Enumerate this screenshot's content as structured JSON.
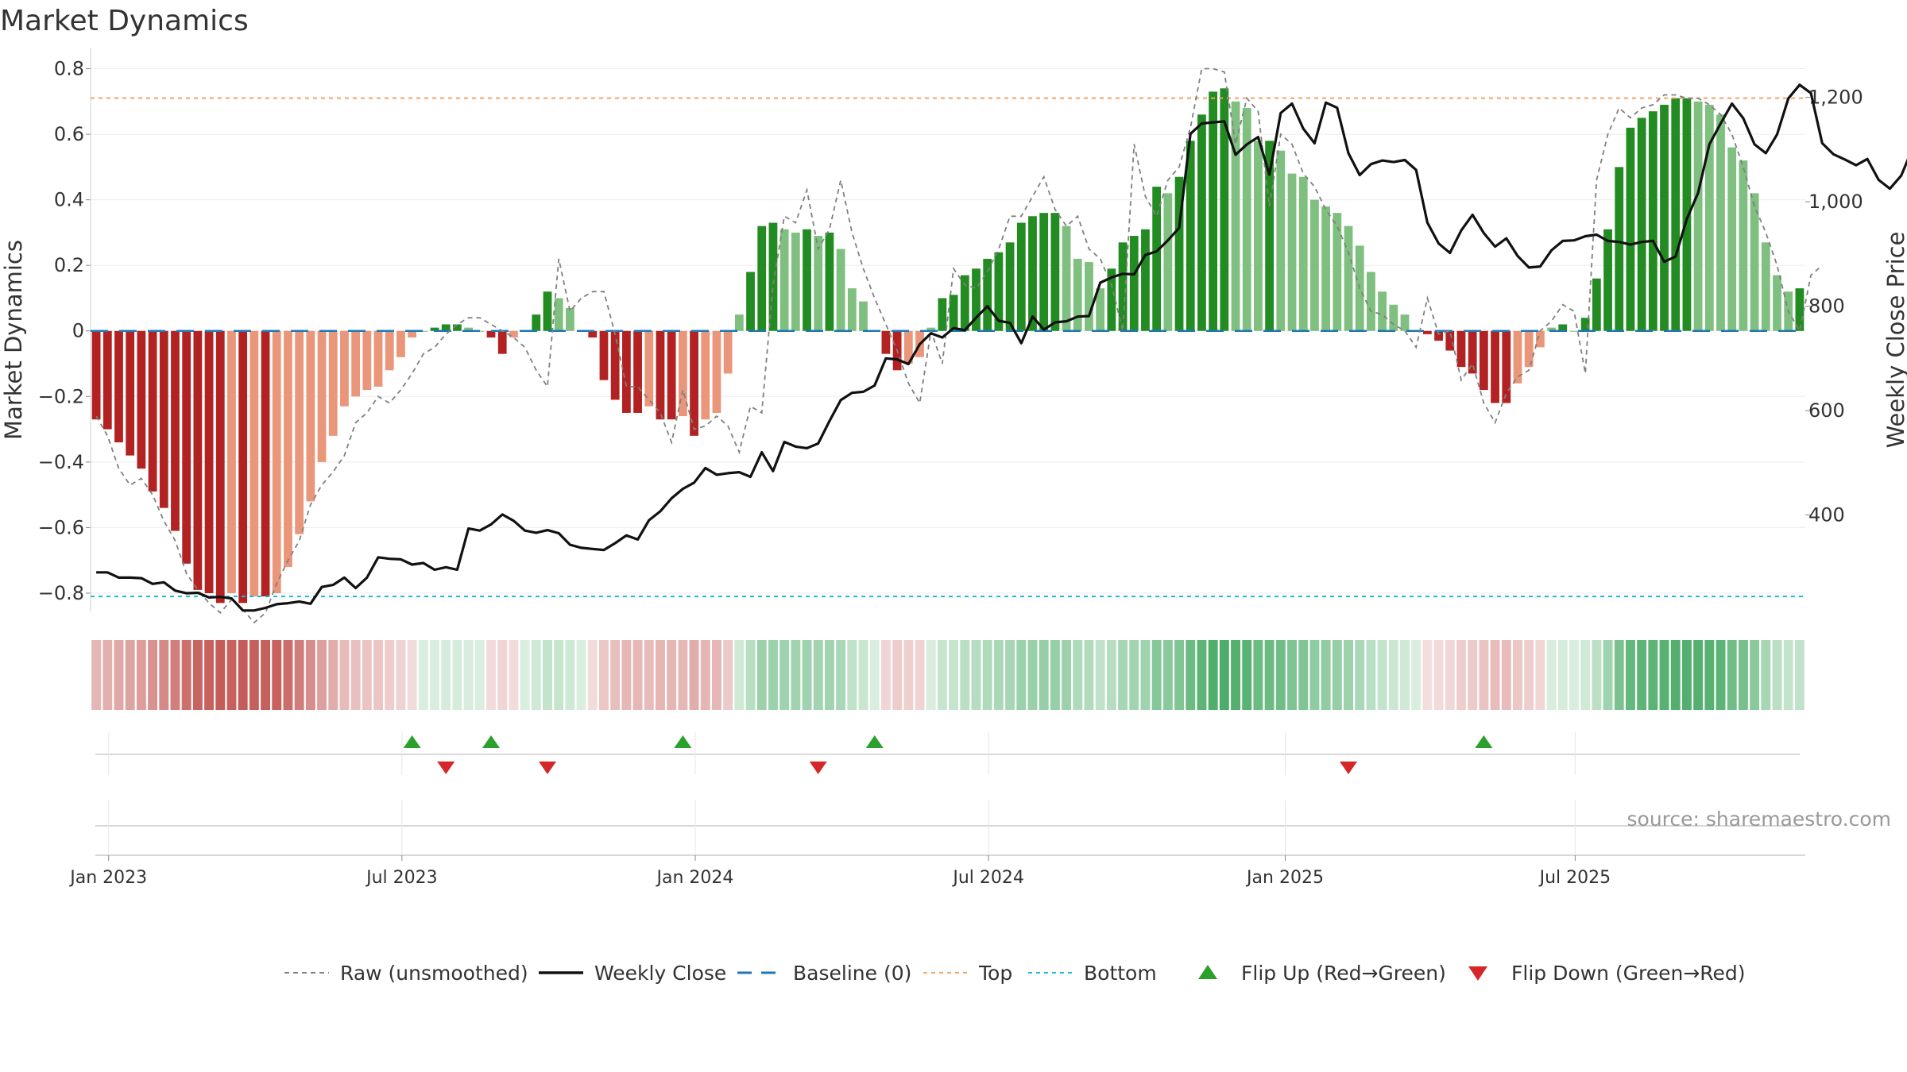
{
  "title": "Market Dynamics",
  "source": "source: sharemaestro.com",
  "colors": {
    "dark_red": "#b22222",
    "light_red": "#e9967a",
    "dark_green": "#228b22",
    "light_green": "#7fbf7f",
    "raw": "#808080",
    "close": "#111111",
    "baseline": "#1f77b4",
    "top": "#f4a460",
    "bottom": "#17becf",
    "flip_up": "#2ca02c",
    "flip_down": "#d62728",
    "band_red": "#c0504d",
    "band_green": "#2e9e4f"
  },
  "chart_data": {
    "type": "bar",
    "title": "Market Dynamics",
    "ylabel": "Market Dynamics",
    "y2label": "Weekly Close Price",
    "ylim": [
      -0.88,
      0.84
    ],
    "y2lim": [
      200,
      1280
    ],
    "yticks": [
      "0.8",
      "0.6",
      "0.4",
      "0.2",
      "0",
      "−0.2",
      "−0.4",
      "−0.6",
      "−0.8"
    ],
    "y2ticks": [
      "1,200",
      "1,000",
      "800",
      "600",
      "400"
    ],
    "xticks": [
      "Jan 2023",
      "Jul 2023",
      "Jan 2024",
      "Jul 2024",
      "Jan 2025",
      "Jul 2025"
    ],
    "top_line": 0.71,
    "bottom_line": -0.81,
    "baseline": 0,
    "series": [
      {
        "name": "Raw (unsmoothed)",
        "values": [
          -0.26,
          -0.32,
          -0.42,
          -0.47,
          -0.45,
          -0.5,
          -0.58,
          -0.64,
          -0.74,
          -0.79,
          -0.83,
          -0.86,
          -0.82,
          -0.85,
          -0.89,
          -0.86,
          -0.77,
          -0.7,
          -0.64,
          -0.53,
          -0.47,
          -0.43,
          -0.38,
          -0.28,
          -0.25,
          -0.2,
          -0.22,
          -0.18,
          -0.13,
          -0.07,
          -0.05,
          -0.01,
          0.02,
          0.04,
          0.04,
          0.02,
          0.0,
          -0.02,
          -0.05,
          -0.12,
          -0.17,
          0.22,
          0.06,
          0.1,
          0.12,
          0.12,
          -0.01,
          -0.17,
          -0.17,
          -0.21,
          -0.25,
          -0.34,
          -0.18,
          -0.3,
          -0.29,
          -0.26,
          -0.29,
          -0.37,
          -0.23,
          -0.25,
          0.14,
          0.35,
          0.33,
          0.43,
          0.25,
          0.31,
          0.46,
          0.3,
          0.19,
          0.1,
          0.02,
          -0.06,
          -0.16,
          -0.22,
          0.0,
          -0.1,
          0.19,
          0.14,
          0.13,
          0.18,
          0.25,
          0.35,
          0.35,
          0.41,
          0.47,
          0.37,
          0.32,
          0.35,
          0.25,
          0.22,
          0.14,
          0.0,
          0.57,
          0.41,
          0.35,
          0.46,
          0.5,
          0.62,
          0.8,
          0.8,
          0.79,
          0.57,
          0.71,
          0.67,
          0.38,
          0.6,
          0.57,
          0.48,
          0.44,
          0.37,
          0.32,
          0.24,
          0.13,
          0.06,
          0.05,
          0.02,
          0.0,
          -0.05,
          0.1,
          -0.01,
          0.0,
          -0.15,
          -0.1,
          -0.22,
          -0.28,
          -0.19,
          -0.14,
          -0.12,
          0.0,
          0.03,
          0.08,
          0.06,
          -0.13,
          0.46,
          0.6,
          0.68,
          0.65,
          0.68,
          0.69,
          0.72,
          0.72,
          0.71,
          0.71,
          0.69,
          0.66,
          0.6,
          0.5,
          0.38,
          0.3,
          0.2,
          0.06,
          0.0,
          0.17,
          0.2
        ]
      },
      {
        "name": "Weekly Close",
        "values": [
          290,
          290,
          280,
          280,
          279,
          268,
          271,
          255,
          250,
          251,
          242,
          243,
          240,
          217,
          217,
          222,
          229,
          231,
          234,
          230,
          262,
          266,
          280,
          260,
          280,
          319,
          316,
          315,
          305,
          308,
          295,
          300,
          295,
          374,
          370,
          382,
          401,
          389,
          370,
          366,
          371,
          365,
          343,
          337,
          335,
          333,
          346,
          361,
          353,
          390,
          407,
          432,
          450,
          462,
          490,
          477,
          480,
          482,
          473,
          520,
          484,
          540,
          531,
          528,
          537,
          580,
          620,
          634,
          636,
          648,
          700,
          698,
          689,
          727,
          748,
          740,
          758,
          754,
          778,
          800,
          772,
          768,
          729,
          780,
          755,
          769,
          771,
          780,
          781,
          845,
          855,
          862,
          861,
          898,
          905,
          926,
          950,
          1130,
          1150,
          1152,
          1154,
          1090,
          1110,
          1124,
          1052,
          1170,
          1188,
          1140,
          1112,
          1190,
          1180,
          1093,
          1051,
          1072,
          1079,
          1076,
          1080,
          1061,
          960,
          920,
          902,
          945,
          975,
          940,
          914,
          930,
          896,
          874,
          876,
          907,
          925,
          926,
          934,
          937,
          925,
          923,
          918,
          923,
          925,
          885,
          895,
          967,
          1017,
          1110,
          1150,
          1188,
          1160,
          1110,
          1093,
          1129,
          1198,
          1224,
          1208,
          1112,
          1091,
          1081,
          1070,
          1082,
          1042,
          1025,
          1050,
          1102,
          1117
        ]
      },
      {
        "name": "Smoothed",
        "values": [
          -0.27,
          -0.3,
          -0.34,
          -0.38,
          -0.42,
          -0.49,
          -0.54,
          -0.61,
          -0.71,
          -0.79,
          -0.8,
          -0.83,
          -0.8,
          -0.83,
          -0.81,
          -0.81,
          -0.8,
          -0.72,
          -0.62,
          -0.52,
          -0.4,
          -0.32,
          -0.23,
          -0.2,
          -0.18,
          -0.17,
          -0.12,
          -0.08,
          -0.02,
          0.0,
          0.01,
          0.02,
          0.02,
          0.01,
          0.0,
          -0.02,
          -0.07,
          -0.02,
          0.0,
          0.05,
          0.12,
          0.1,
          0.07,
          0.0,
          -0.02,
          -0.15,
          -0.21,
          -0.25,
          -0.25,
          -0.23,
          -0.27,
          -0.27,
          -0.26,
          -0.32,
          -0.27,
          -0.25,
          -0.13,
          0.05,
          0.18,
          0.32,
          0.33,
          0.31,
          0.3,
          0.31,
          0.29,
          0.3,
          0.25,
          0.13,
          0.09,
          0.0,
          -0.07,
          -0.12,
          -0.1,
          -0.08,
          0.01,
          0.1,
          0.11,
          0.17,
          0.19,
          0.22,
          0.24,
          0.27,
          0.33,
          0.35,
          0.36,
          0.36,
          0.32,
          0.22,
          0.21,
          0.13,
          0.19,
          0.27,
          0.29,
          0.31,
          0.44,
          0.42,
          0.47,
          0.58,
          0.66,
          0.73,
          0.74,
          0.7,
          0.68,
          0.58,
          0.58,
          0.55,
          0.48,
          0.47,
          0.4,
          0.38,
          0.36,
          0.32,
          0.26,
          0.18,
          0.12,
          0.08,
          0.05,
          0.0,
          -0.01,
          -0.03,
          -0.06,
          -0.11,
          -0.13,
          -0.18,
          -0.22,
          -0.22,
          -0.16,
          -0.11,
          -0.05,
          0.01,
          0.02,
          0.0,
          0.04,
          0.16,
          0.31,
          0.5,
          0.62,
          0.65,
          0.67,
          0.69,
          0.71,
          0.71,
          0.7,
          0.69,
          0.66,
          0.56,
          0.52,
          0.42,
          0.27,
          0.17,
          0.12,
          0.13
        ]
      }
    ],
    "flip_up_weeks": [
      28,
      35,
      52,
      69,
      123
    ],
    "flip_down_weeks": [
      31,
      40,
      64,
      111
    ]
  },
  "legend": [
    {
      "label": "Raw (unsmoothed)",
      "kind": "dashed-line",
      "color": "#808080"
    },
    {
      "label": "Weekly Close",
      "kind": "line",
      "color": "#111111"
    },
    {
      "label": "Baseline (0)",
      "kind": "long-dash",
      "color": "#1f77b4"
    },
    {
      "label": "Top",
      "kind": "dotted-line",
      "color": "#f4a460"
    },
    {
      "label": "Bottom",
      "kind": "dotted-line",
      "color": "#17becf"
    },
    {
      "label": "Flip Up (Red→Green)",
      "kind": "up-triangle",
      "color": "#2ca02c"
    },
    {
      "label": "Flip Down (Green→Red)",
      "kind": "down-triangle",
      "color": "#d62728"
    }
  ]
}
